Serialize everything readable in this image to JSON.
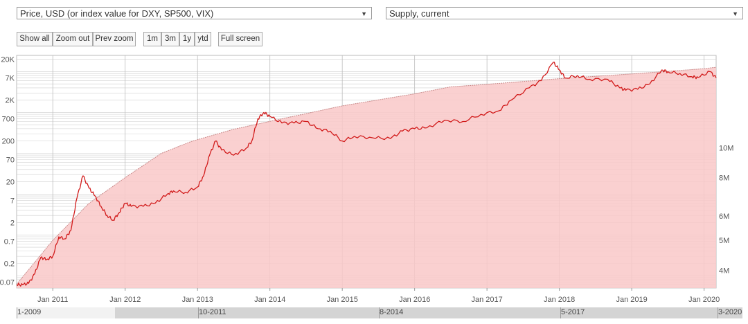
{
  "controls": {
    "left_select": "Price, USD (or index value for DXY, SP500, VIX)",
    "right_select": "Supply, current",
    "dropdown_arrow": "▼",
    "buttons": {
      "show_all": "Show all",
      "zoom_out": "Zoom out",
      "prev_zoom": "Prev zoom",
      "r1m": "1m",
      "r3m": "3m",
      "r1y": "1y",
      "ytd": "ytd",
      "full_screen": "Full screen"
    }
  },
  "navigator": {
    "labels": [
      "1-2009",
      "10-2011",
      "8-2014",
      "5-2017",
      "3-2020"
    ]
  },
  "colors": {
    "price_line": "#d11a1a",
    "supply_fill": "#f9c8c8",
    "supply_line": "#c98a8a",
    "grid": "#cfcfcf"
  },
  "chart_data": {
    "type": "line",
    "x_ticks": [
      "Jan 2011",
      "Jan 2012",
      "Jan 2013",
      "Jan 2014",
      "Jan 2015",
      "Jan 2016",
      "Jan 2017",
      "Jan 2018",
      "Jan 2019",
      "Jan 2020"
    ],
    "x_range": [
      "2010-07",
      "2020-03"
    ],
    "y_left": {
      "label": "Price, USD",
      "scale": "log",
      "range": [
        0.05,
        25000
      ],
      "ticks": [
        "0.07",
        "0.2",
        "0.7",
        "2",
        "7",
        "20",
        "70",
        "200",
        "700",
        "2K",
        "7K",
        "20K"
      ]
    },
    "y_right": {
      "label": "Supply, current",
      "scale": "log",
      "ticks": [
        "4M",
        "5M",
        "6M",
        "8M",
        "10M"
      ]
    },
    "series": [
      {
        "name": "Price, USD",
        "values": [
          [
            "2010-07",
            0.06
          ],
          [
            "2010-08",
            0.06
          ],
          [
            "2010-09",
            0.065
          ],
          [
            "2010-10",
            0.11
          ],
          [
            "2010-11",
            0.28
          ],
          [
            "2010-12",
            0.25
          ],
          [
            "2011-01",
            0.3
          ],
          [
            "2011-02",
            0.9
          ],
          [
            "2011-03",
            0.8
          ],
          [
            "2011-04",
            1.3
          ],
          [
            "2011-05",
            8
          ],
          [
            "2011-06",
            28
          ],
          [
            "2011-07",
            14
          ],
          [
            "2011-08",
            9
          ],
          [
            "2011-09",
            5
          ],
          [
            "2011-10",
            3
          ],
          [
            "2011-11",
            2.3
          ],
          [
            "2011-12",
            3.5
          ],
          [
            "2012-01",
            6
          ],
          [
            "2012-02",
            5
          ],
          [
            "2012-04",
            5
          ],
          [
            "2012-06",
            6
          ],
          [
            "2012-08",
            10
          ],
          [
            "2012-09",
            12
          ],
          [
            "2012-11",
            11
          ],
          [
            "2013-01",
            15
          ],
          [
            "2013-02",
            28
          ],
          [
            "2013-03",
            90
          ],
          [
            "2013-04",
            200
          ],
          [
            "2013-05",
            120
          ],
          [
            "2013-07",
            90
          ],
          [
            "2013-09",
            130
          ],
          [
            "2013-10",
            200
          ],
          [
            "2013-11",
            700
          ],
          [
            "2013-12",
            1000
          ],
          [
            "2014-01",
            800
          ],
          [
            "2014-03",
            550
          ],
          [
            "2014-05",
            550
          ],
          [
            "2014-07",
            600
          ],
          [
            "2014-09",
            400
          ],
          [
            "2014-11",
            350
          ],
          [
            "2015-01",
            200
          ],
          [
            "2015-03",
            260
          ],
          [
            "2015-06",
            240
          ],
          [
            "2015-09",
            230
          ],
          [
            "2015-11",
            350
          ],
          [
            "2016-01",
            400
          ],
          [
            "2016-03",
            420
          ],
          [
            "2016-06",
            650
          ],
          [
            "2016-09",
            600
          ],
          [
            "2016-12",
            900
          ],
          [
            "2017-03",
            1100
          ],
          [
            "2017-05",
            2000
          ],
          [
            "2017-08",
            4000
          ],
          [
            "2017-10",
            6000
          ],
          [
            "2017-12",
            17000
          ],
          [
            "2018-01",
            11000
          ],
          [
            "2018-02",
            7000
          ],
          [
            "2018-04",
            8000
          ],
          [
            "2018-06",
            6500
          ],
          [
            "2018-09",
            6500
          ],
          [
            "2018-11",
            4000
          ],
          [
            "2018-12",
            3500
          ],
          [
            "2019-02",
            3700
          ],
          [
            "2019-04",
            5000
          ],
          [
            "2019-06",
            11000
          ],
          [
            "2019-07",
            10000
          ],
          [
            "2019-09",
            9000
          ],
          [
            "2019-11",
            7500
          ],
          [
            "2019-12",
            7200
          ],
          [
            "2020-02",
            10000
          ],
          [
            "2020-03",
            7000
          ]
        ]
      },
      {
        "name": "Supply, current",
        "values": [
          [
            "2010-07",
            3.6
          ],
          [
            "2011-01",
            5.0
          ],
          [
            "2011-07",
            6.6
          ],
          [
            "2012-01",
            8.0
          ],
          [
            "2012-07",
            9.6
          ],
          [
            "2012-12",
            10.5
          ],
          [
            "2013-07",
            11.5
          ],
          [
            "2014-01",
            12.2
          ],
          [
            "2015-01",
            13.7
          ],
          [
            "2016-01",
            15.0
          ],
          [
            "2016-07",
            15.8
          ],
          [
            "2017-01",
            16.1
          ],
          [
            "2018-01",
            16.8
          ],
          [
            "2019-01",
            17.4
          ],
          [
            "2020-01",
            18.1
          ],
          [
            "2020-03",
            18.3
          ]
        ]
      }
    ]
  }
}
